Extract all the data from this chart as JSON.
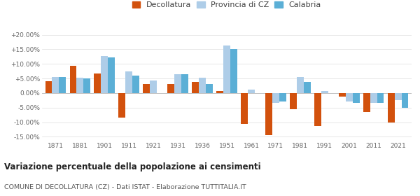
{
  "years": [
    1871,
    1881,
    1901,
    1911,
    1921,
    1931,
    1936,
    1951,
    1961,
    1971,
    1981,
    1991,
    2001,
    2011,
    2021
  ],
  "decollatura": [
    4.0,
    9.3,
    6.7,
    -8.5,
    3.0,
    3.2,
    3.8,
    0.7,
    -10.5,
    -14.5,
    -5.5,
    -11.2,
    -1.2,
    -6.5,
    -10.0
  ],
  "provincia_cz": [
    5.5,
    5.2,
    12.8,
    7.3,
    4.2,
    6.5,
    5.2,
    16.2,
    1.2,
    -3.5,
    5.5,
    0.8,
    -3.0,
    -3.5,
    -2.5
  ],
  "calabria": [
    5.5,
    5.0,
    12.2,
    6.0,
    null,
    6.5,
    3.0,
    15.2,
    null,
    -3.0,
    3.7,
    null,
    -3.5,
    -3.5,
    -5.0
  ],
  "color_decollatura": "#d2510d",
  "color_provincia": "#aecde8",
  "color_calabria": "#5bafd6",
  "title_main": "Variazione percentuale della popolazione ai censimenti",
  "title_sub": "COMUNE DI DECOLLATURA (CZ) - Dati ISTAT - Elaborazione TUTTITALIA.IT",
  "legend_labels": [
    "Decollatura",
    "Provincia di CZ",
    "Calabria"
  ],
  "yticks": [
    -15.0,
    -10.0,
    -5.0,
    0.0,
    5.0,
    10.0,
    15.0,
    20.0
  ],
  "ylim": [
    -16.5,
    22.5
  ],
  "plot_bg": "#ffffff"
}
